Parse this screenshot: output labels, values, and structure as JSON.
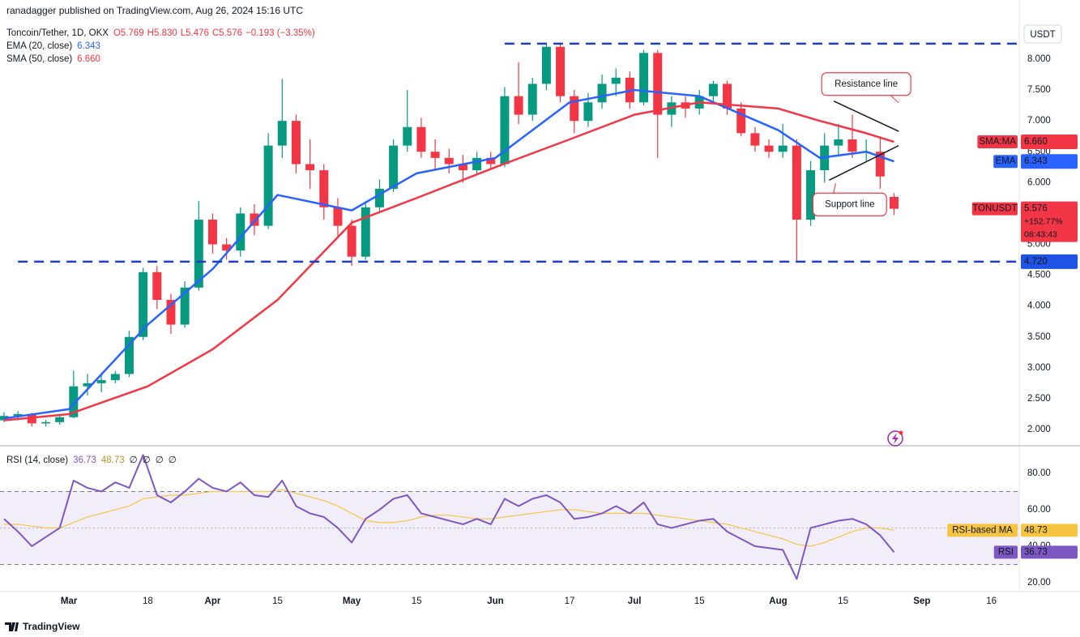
{
  "publisher": "ranadagger published on TradingView.com, Aug 26, 2024 15:16 UTC",
  "footer": "TradingView",
  "chart_data": [
    {
      "type": "candlestick",
      "title": "Toncoin/Tether, 1D, OKX",
      "ohlc_labels": [
        "O5.769",
        "H5.830",
        "L5.476",
        "C5.576",
        "−0.193 (−3.35%)"
      ],
      "currency": "USDT",
      "up_color": "#089981",
      "down_color": "#f23645",
      "x": [
        0,
        3,
        6,
        9,
        12,
        15,
        18,
        21,
        24,
        27,
        30,
        33,
        36,
        39,
        42,
        45,
        48,
        51,
        54,
        57,
        60,
        63,
        66,
        69,
        72,
        75,
        78,
        81,
        84,
        87,
        90,
        93,
        96,
        99,
        102,
        105,
        108,
        111,
        114,
        117,
        120,
        123,
        126,
        129,
        132,
        135,
        138,
        141,
        144,
        147,
        150,
        153,
        156,
        159,
        162,
        165,
        168,
        171,
        174,
        177,
        180,
        183,
        186,
        189,
        192
      ],
      "candles": [
        [
          2.15,
          2.28,
          2.12,
          2.22
        ],
        [
          2.22,
          2.3,
          2.15,
          2.25
        ],
        [
          2.25,
          2.27,
          2.05,
          2.1
        ],
        [
          2.1,
          2.16,
          2.05,
          2.12
        ],
        [
          2.12,
          2.25,
          2.08,
          2.2
        ],
        [
          2.2,
          2.95,
          2.18,
          2.7
        ],
        [
          2.7,
          2.9,
          2.55,
          2.75
        ],
        [
          2.75,
          2.92,
          2.6,
          2.8
        ],
        [
          2.8,
          2.95,
          2.75,
          2.9
        ],
        [
          2.9,
          3.6,
          2.85,
          3.5
        ],
        [
          3.5,
          4.62,
          3.45,
          4.55
        ],
        [
          4.55,
          4.65,
          3.95,
          4.1
        ],
        [
          4.1,
          4.2,
          3.55,
          3.7
        ],
        [
          3.7,
          4.4,
          3.65,
          4.3
        ],
        [
          4.3,
          5.7,
          4.25,
          5.4
        ],
        [
          5.4,
          5.5,
          4.85,
          5.0
        ],
        [
          5.0,
          5.1,
          4.75,
          4.9
        ],
        [
          4.9,
          5.6,
          4.8,
          5.5
        ],
        [
          5.5,
          5.65,
          5.15,
          5.3
        ],
        [
          5.3,
          6.8,
          5.25,
          6.6
        ],
        [
          6.6,
          7.68,
          6.4,
          7.0
        ],
        [
          7.0,
          7.1,
          6.15,
          6.3
        ],
        [
          6.3,
          6.7,
          5.9,
          6.2
        ],
        [
          6.2,
          6.3,
          5.4,
          5.6
        ],
        [
          5.6,
          5.75,
          5.1,
          5.3
        ],
        [
          5.3,
          5.4,
          4.65,
          4.8
        ],
        [
          4.8,
          5.7,
          4.75,
          5.6
        ],
        [
          5.6,
          6.05,
          5.5,
          5.9
        ],
        [
          5.9,
          6.7,
          5.85,
          6.6
        ],
        [
          6.6,
          7.5,
          6.5,
          6.9
        ],
        [
          6.9,
          7.05,
          6.4,
          6.5
        ],
        [
          6.5,
          6.7,
          6.2,
          6.4
        ],
        [
          6.4,
          6.55,
          6.15,
          6.3
        ],
        [
          6.3,
          6.45,
          6.0,
          6.2
        ],
        [
          6.2,
          6.5,
          6.15,
          6.4
        ],
        [
          6.4,
          6.5,
          6.2,
          6.3
        ],
        [
          6.3,
          7.55,
          6.25,
          7.4
        ],
        [
          7.4,
          7.95,
          6.95,
          7.1
        ],
        [
          7.1,
          7.7,
          7.0,
          7.6
        ],
        [
          7.6,
          8.25,
          7.5,
          8.2
        ],
        [
          8.2,
          8.25,
          7.3,
          7.4
        ],
        [
          7.4,
          7.5,
          6.8,
          7.0
        ],
        [
          7.0,
          7.45,
          6.9,
          7.3
        ],
        [
          7.3,
          7.75,
          7.2,
          7.6
        ],
        [
          7.6,
          7.85,
          7.4,
          7.7
        ],
        [
          7.7,
          7.8,
          7.2,
          7.3
        ],
        [
          7.3,
          8.15,
          7.25,
          8.1
        ],
        [
          8.1,
          8.15,
          6.4,
          7.1
        ],
        [
          7.1,
          7.4,
          6.9,
          7.3
        ],
        [
          7.3,
          7.4,
          7.05,
          7.2
        ],
        [
          7.2,
          7.5,
          7.1,
          7.4
        ],
        [
          7.4,
          7.65,
          7.3,
          7.6
        ],
        [
          7.6,
          7.65,
          7.1,
          7.2
        ],
        [
          7.2,
          7.3,
          6.75,
          6.8
        ],
        [
          6.8,
          6.9,
          6.5,
          6.6
        ],
        [
          6.6,
          6.7,
          6.4,
          6.5
        ],
        [
          6.5,
          6.95,
          6.4,
          6.6
        ],
        [
          6.6,
          6.7,
          4.72,
          5.4
        ],
        [
          5.4,
          6.35,
          5.3,
          6.2
        ],
        [
          6.2,
          6.8,
          6.0,
          6.6
        ],
        [
          6.6,
          6.95,
          6.45,
          6.7
        ],
        [
          6.7,
          7.1,
          6.4,
          6.5
        ],
        [
          6.5,
          6.7,
          6.35,
          6.5
        ],
        [
          6.5,
          6.75,
          5.9,
          6.1
        ],
        [
          5.769,
          5.83,
          5.476,
          5.576
        ]
      ],
      "xlim": [
        0,
        219
      ],
      "xticks": [
        {
          "value": 14,
          "label": "Mar"
        },
        31,
        {
          "value": 45,
          "label": "Apr"
        },
        59,
        {
          "value": 75,
          "label": "May"
        },
        89,
        {
          "value": 106,
          "label": "Jun"
        },
        122,
        {
          "value": 136,
          "label": "Jul"
        },
        150,
        {
          "value": 167,
          "label": "Aug"
        },
        181,
        {
          "value": 198,
          "label": "Sep"
        },
        213
      ],
      "xtick_labels": [
        null,
        "18",
        null,
        "15",
        null,
        "15",
        null,
        "17",
        null,
        "15",
        null,
        "15",
        null,
        "16"
      ],
      "ylim": [
        1.764,
        8.958
      ],
      "yticks": [
        {
          "value": 2,
          "label": "2.000"
        },
        {
          "value": 2.5,
          "label": "2.500"
        },
        {
          "value": 3,
          "label": "3.000"
        },
        {
          "value": 3.5,
          "label": "3.500"
        },
        {
          "value": 4,
          "label": "4.000"
        },
        {
          "value": 4.5,
          "label": "4.500"
        },
        {
          "value": 5,
          "label": "5.000"
        },
        {
          "value": 5.5,
          "label": "5.500"
        },
        {
          "value": 6,
          "label": "6.000"
        },
        {
          "value": 6.5,
          "label": "6.500"
        },
        {
          "value": 7,
          "label": "7.000"
        },
        {
          "value": 7.5,
          "label": "7.500"
        },
        {
          "value": 8,
          "label": "8.000"
        }
      ],
      "lines": [
        {
          "name": "EMA (20, close)",
          "legend_value": "6.343",
          "color": "#2962ff",
          "x": [
            0,
            14,
            31,
            45,
            59,
            75,
            89,
            106,
            122,
            136,
            150,
            167,
            176,
            186,
            192
          ],
          "values": [
            2.18,
            2.33,
            3.7,
            4.6,
            5.8,
            5.55,
            6.15,
            6.4,
            7.3,
            7.5,
            7.4,
            6.85,
            6.4,
            6.5,
            6.343
          ]
        },
        {
          "name": "SMA (50, close)",
          "legend_value": "6.660",
          "color": "#f23645",
          "x": [
            0,
            14,
            31,
            45,
            59,
            75,
            89,
            106,
            122,
            136,
            150,
            167,
            176,
            186,
            192
          ],
          "values": [
            2.15,
            2.25,
            2.7,
            3.3,
            4.1,
            5.35,
            5.75,
            6.25,
            6.7,
            7.1,
            7.3,
            7.2,
            7.0,
            6.8,
            6.66
          ]
        }
      ],
      "levels": [
        {
          "value": 8.25,
          "x_from": 108,
          "color": "#1e3fbf"
        },
        {
          "value": 4.72,
          "x_from": 3,
          "color": "#1e3fbf"
        }
      ],
      "trendlines": [
        {
          "name": "Resistance line",
          "x": [
            179,
            193
          ],
          "values": [
            7.32,
            6.83
          ]
        },
        {
          "name": "Support line",
          "x": [
            178,
            193
          ],
          "values": [
            6.04,
            6.6
          ]
        }
      ],
      "badges": [
        {
          "name": "SMA:MA",
          "value": 6.66,
          "label": "6.660",
          "color": "#f23645"
        },
        {
          "name": "EMA",
          "value": 6.343,
          "label": "6.343",
          "color": "#2962ff"
        },
        {
          "name": "TONUSDT",
          "value": 5.576,
          "label": "5.576",
          "extra": [
            "+152.77%",
            "08:43:43"
          ],
          "color": "#f23645"
        },
        {
          "value": 4.72,
          "label": "4.720",
          "color": "#1e53e5"
        }
      ]
    },
    {
      "type": "line",
      "title": "RSI (14, close)",
      "legend_values": [
        "36.73",
        "48.73",
        "∅",
        "∅",
        "∅",
        "∅"
      ],
      "x": [
        0,
        3,
        6,
        9,
        12,
        15,
        18,
        21,
        24,
        27,
        30,
        33,
        36,
        39,
        42,
        45,
        48,
        51,
        54,
        57,
        60,
        63,
        66,
        69,
        72,
        75,
        78,
        81,
        84,
        87,
        90,
        93,
        96,
        99,
        102,
        105,
        108,
        111,
        114,
        117,
        120,
        123,
        126,
        129,
        132,
        135,
        138,
        141,
        144,
        147,
        150,
        153,
        156,
        159,
        162,
        165,
        168,
        171,
        174,
        177,
        180,
        183,
        186,
        189,
        192
      ],
      "series": [
        {
          "name": "RSI",
          "label": "36.73",
          "color": "#7e57c2",
          "values": [
            55,
            48,
            40,
            45,
            50,
            76,
            72,
            70,
            75,
            72,
            90,
            68,
            64,
            70,
            77,
            72,
            70,
            75,
            68,
            67,
            76,
            62,
            58,
            56,
            50,
            42,
            55,
            60,
            66,
            68,
            58,
            56,
            54,
            52,
            55,
            52,
            66,
            62,
            66,
            68,
            64,
            55,
            56,
            58,
            62,
            58,
            64,
            52,
            50,
            52,
            54,
            55,
            48,
            44,
            40,
            39,
            38,
            22,
            50,
            52,
            54,
            55,
            52,
            46,
            36.73
          ]
        },
        {
          "name": "RSI-based MA",
          "label": "48.73",
          "color": "#f5c542",
          "values": [
            52,
            52,
            51,
            50,
            50,
            53,
            56,
            58,
            60,
            62,
            66,
            67,
            68,
            68,
            69,
            70,
            70,
            70,
            70,
            70,
            71,
            69,
            67,
            65,
            62,
            58,
            54,
            53,
            53,
            54,
            56,
            57,
            57,
            56,
            55,
            55,
            56,
            57,
            58,
            59,
            60,
            60,
            59,
            58,
            58,
            58,
            58,
            57,
            56,
            55,
            54,
            53,
            52,
            50,
            48,
            46,
            44,
            41,
            40,
            42,
            45,
            48,
            50,
            50,
            48.73
          ]
        }
      ],
      "xlim": [
        0,
        219
      ],
      "ylim": [
        15.1,
        94.2
      ],
      "yticks": [
        {
          "value": 20,
          "label": "20.00"
        },
        {
          "value": 40,
          "label": "40.00"
        },
        {
          "value": 60,
          "label": "60.00"
        },
        {
          "value": 80,
          "label": "80.00"
        }
      ],
      "bands": [
        30,
        70
      ],
      "midline": 50
    }
  ]
}
